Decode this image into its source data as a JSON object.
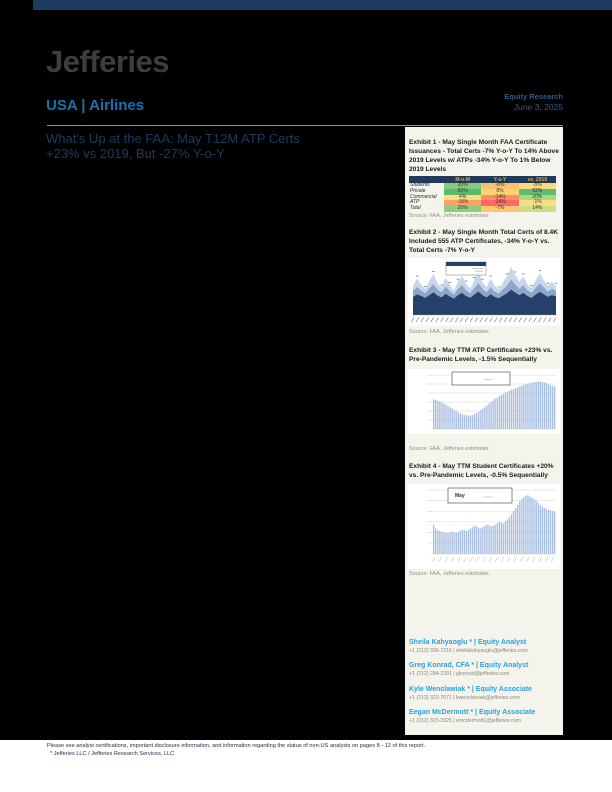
{
  "header": {
    "brand": "Jefferies",
    "section": "USA | Airlines",
    "research_type": "Equity Research",
    "date": "June 3, 2025"
  },
  "title": {
    "line1": "What's Up at the FAA: May T12M ATP Certs",
    "line2": "+23% vs 2019, But -27% Y-o-Y"
  },
  "colors": {
    "top_bar": "#1c3b5e",
    "brand_gray": "#3d3d3f",
    "section_blue": "#1673b2",
    "title_navy": "#1e3c5a",
    "panel_background": "#f4f3ec",
    "analyst_blue": "#2aa2d8",
    "table_header_navy": "#21395b",
    "table_header_gold": "#d2ae4a",
    "bar_blue": "#a7bde2"
  },
  "chart_data": [
    {
      "exhibit": 1,
      "type": "table",
      "title": "Exhibit 1 - May Single Month FAA Certificate Issuances - Total Certs -7% Y-o-Y To 14% Above 2019 Levels w/ ATPs -34% Y-o-Y To 1% Below 2019 Levels",
      "columns": [
        "",
        "M-o-M",
        "Y-o-Y",
        "vs. 2019"
      ],
      "rows": [
        {
          "label": "Students",
          "values": [
            "20%",
            "-8%",
            "-5%"
          ],
          "colors": [
            "#86c97e",
            "#fdc06c",
            "#fed980"
          ]
        },
        {
          "label": "Private",
          "values": [
            "50%",
            "8%",
            "62%"
          ],
          "colors": [
            "#5abb6e",
            "#fdd36f",
            "#5cbc70"
          ]
        },
        {
          "label": "Commercial",
          "values": [
            "4%",
            "-14%",
            "20%"
          ],
          "colors": [
            "#fede81",
            "#fc8e62",
            "#aed57f"
          ]
        },
        {
          "label": "ATP",
          "values": [
            "-18%",
            "-34%",
            "-1%"
          ],
          "colors": [
            "#fca368",
            "#f8696b",
            "#fedc81"
          ]
        },
        {
          "label": "Total",
          "values": [
            "20%",
            "-7%",
            "14%"
          ],
          "colors": [
            "#8ccc7c",
            "#fdc76d",
            "#c9dd82"
          ]
        }
      ],
      "source": "Source: FAA, Jefferies estimates"
    },
    {
      "exhibit": 2,
      "type": "area",
      "stacked": true,
      "title": "Exhibit 2 - May Single Month Total Certs of 8.4K Included 555 ATP Certificates, -34% Y-o-Y vs. Total Certs -7% Y-o-Y",
      "ylim": [
        0,
        11
      ],
      "x_tick_count": 30,
      "series": [
        {
          "name": "bottom-layer",
          "color": "#24406b",
          "values": [
            4.0,
            4.6,
            4.2,
            3.8,
            4.4,
            5.0,
            4.3,
            3.9,
            4.7,
            4.1,
            3.6,
            4.4,
            4.9,
            4.2,
            3.8,
            4.5,
            5.2,
            4.4,
            3.9,
            4.6,
            4.0,
            3.7,
            4.3,
            4.8,
            5.6,
            5.0,
            4.4,
            4.9,
            4.2,
            3.8,
            4.5,
            5.1,
            4.6,
            4.0,
            4.4,
            4.1
          ]
        },
        {
          "name": "middle-layer",
          "color": "#8ba6ca",
          "values": [
            1.3,
            1.6,
            1.2,
            1.0,
            1.5,
            1.8,
            1.3,
            1.1,
            1.6,
            1.2,
            0.9,
            1.4,
            1.7,
            1.3,
            1.0,
            1.5,
            1.9,
            1.4,
            1.1,
            1.6,
            1.2,
            1.0,
            1.4,
            1.7,
            2.2,
            1.8,
            1.4,
            1.7,
            1.3,
            1.1,
            1.5,
            1.9,
            1.5,
            1.2,
            1.4,
            1.2
          ]
        },
        {
          "name": "top-layer",
          "color": "#c8d6ea",
          "values": [
            1.1,
            1.8,
            1.3,
            0.9,
            1.6,
            2.2,
            1.4,
            1.0,
            1.9,
            1.3,
            0.8,
            1.5,
            2.0,
            1.4,
            1.0,
            1.7,
            2.4,
            1.5,
            1.1,
            1.8,
            1.2,
            0.9,
            1.5,
            2.0,
            2.8,
            2.1,
            1.5,
            1.9,
            1.3,
            1.0,
            1.6,
            2.2,
            1.6,
            1.2,
            1.5,
            1.1
          ]
        }
      ],
      "legend": {
        "visible": true
      },
      "source": "Source: FAA, Jefferies estimates"
    },
    {
      "exhibit": 3,
      "type": "bar",
      "title": "Exhibit 3 - May TTM ATP Certificates +23% vs. Pre-Pandemic Levels, -1.5% Sequentially",
      "color": "#a7bde2",
      "ylim": [
        0,
        100
      ],
      "values": [
        55,
        54,
        52,
        51,
        49,
        47,
        45,
        43,
        40,
        38,
        35,
        33,
        31,
        29,
        27,
        26,
        25,
        25,
        25,
        26,
        28,
        30,
        32,
        35,
        38,
        41,
        44,
        47,
        50,
        53,
        56,
        58,
        61,
        63,
        65,
        67,
        69,
        71,
        73,
        74,
        76,
        77,
        79,
        80,
        82,
        83,
        84,
        85,
        86,
        87,
        87,
        88,
        88,
        87,
        86,
        85,
        83,
        81,
        80,
        79
      ],
      "legend": {
        "visible": true,
        "label": ""
      },
      "source": "Source: FAA, Jefferies estimates"
    },
    {
      "exhibit": 4,
      "type": "bar",
      "title": "Exhibit 4 - May TTM Student Certificates +20% vs. Pre-Pandemic Levels, -0.5% Sequentially",
      "color": "#a7bde2",
      "ylim": [
        0,
        100
      ],
      "values": [
        46,
        40,
        37,
        36,
        35,
        34,
        33,
        33,
        34,
        35,
        34,
        33,
        34,
        36,
        38,
        37,
        36,
        38,
        40,
        42,
        44,
        43,
        41,
        40,
        42,
        44,
        46,
        45,
        43,
        44,
        46,
        48,
        50,
        49,
        48,
        51,
        54,
        58,
        62,
        67,
        72,
        77,
        82,
        86,
        89,
        91,
        92,
        90,
        88,
        86,
        83,
        80,
        77,
        74,
        72,
        70,
        69,
        68,
        67,
        66
      ],
      "legend": {
        "visible": true,
        "label": "May"
      },
      "source": "Source: FAA, Jefferies estimates"
    }
  ],
  "analysts": [
    {
      "line": "Sheila Kahyaoglu * | Equity Analyst",
      "contact": "+1 (212) 336-7216 | sheilakahyaoglu@jefferies.com"
    },
    {
      "line": "Greg Konrad, CFA * | Equity Analyst",
      "contact": "+1 (212) 284-2391 | gkonrad@jefferies.com"
    },
    {
      "line": "Kyle Wenclawiak * | Equity Associate",
      "contact": "+1 (212) 323-7671 | kwenclawiak@jefferies.com"
    },
    {
      "line": "Eegan McDermott * | Equity Associate",
      "contact": "+1 (212) 323-3325 | emcdermott1@jefferies.com"
    }
  ],
  "footer": {
    "line1": "Please see analyst certifications, important disclosure information, and information regarding the status of non-US analysts on pages 8 - 12 of this report.",
    "line2": "* Jefferies LLC / Jefferies Research Services, LLC"
  }
}
